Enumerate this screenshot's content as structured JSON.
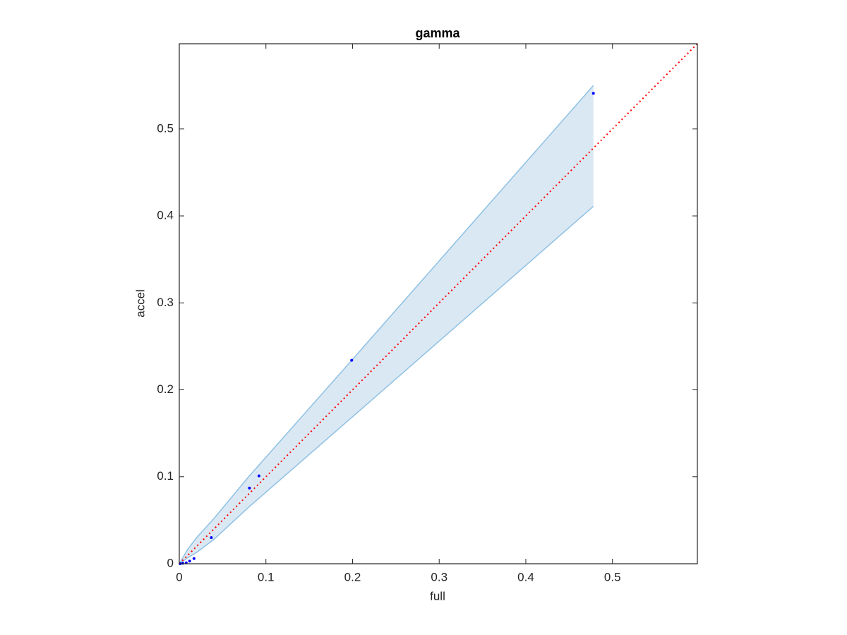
{
  "chart_data": {
    "type": "scatter",
    "title": "gamma",
    "x_label": "full",
    "y_label": "accel",
    "xlim": [
      0,
      0.598
    ],
    "ylim": [
      0,
      0.598
    ],
    "xticks": [
      0,
      0.1,
      0.2,
      0.3,
      0.4,
      0.5
    ],
    "yticks": [
      0,
      0.1,
      0.2,
      0.3,
      0.4,
      0.5
    ],
    "band": {
      "color": "#8fc1e3",
      "fill": "#dae8f4",
      "x": [
        0,
        0.01,
        0.02,
        0.04,
        0.08,
        0.2,
        0.478
      ],
      "upper": [
        0,
        0.017,
        0.03,
        0.052,
        0.1,
        0.235,
        0.55
      ],
      "lower": [
        0,
        0.007,
        0.013,
        0.028,
        0.065,
        0.169,
        0.411
      ]
    },
    "diagonal": {
      "color": "#ff0000",
      "x": [
        0,
        0.598
      ],
      "values": [
        0,
        0.598
      ]
    },
    "points": {
      "color": "#0000ff",
      "x": [
        0.478,
        0.199,
        0.092,
        0.081,
        0.037,
        0.017,
        0.012,
        0.008,
        0.004,
        0.001
      ],
      "values": [
        0.541,
        0.234,
        0.101,
        0.087,
        0.03,
        0.006,
        0.003,
        0.001,
        0.0005,
        0
      ]
    }
  }
}
